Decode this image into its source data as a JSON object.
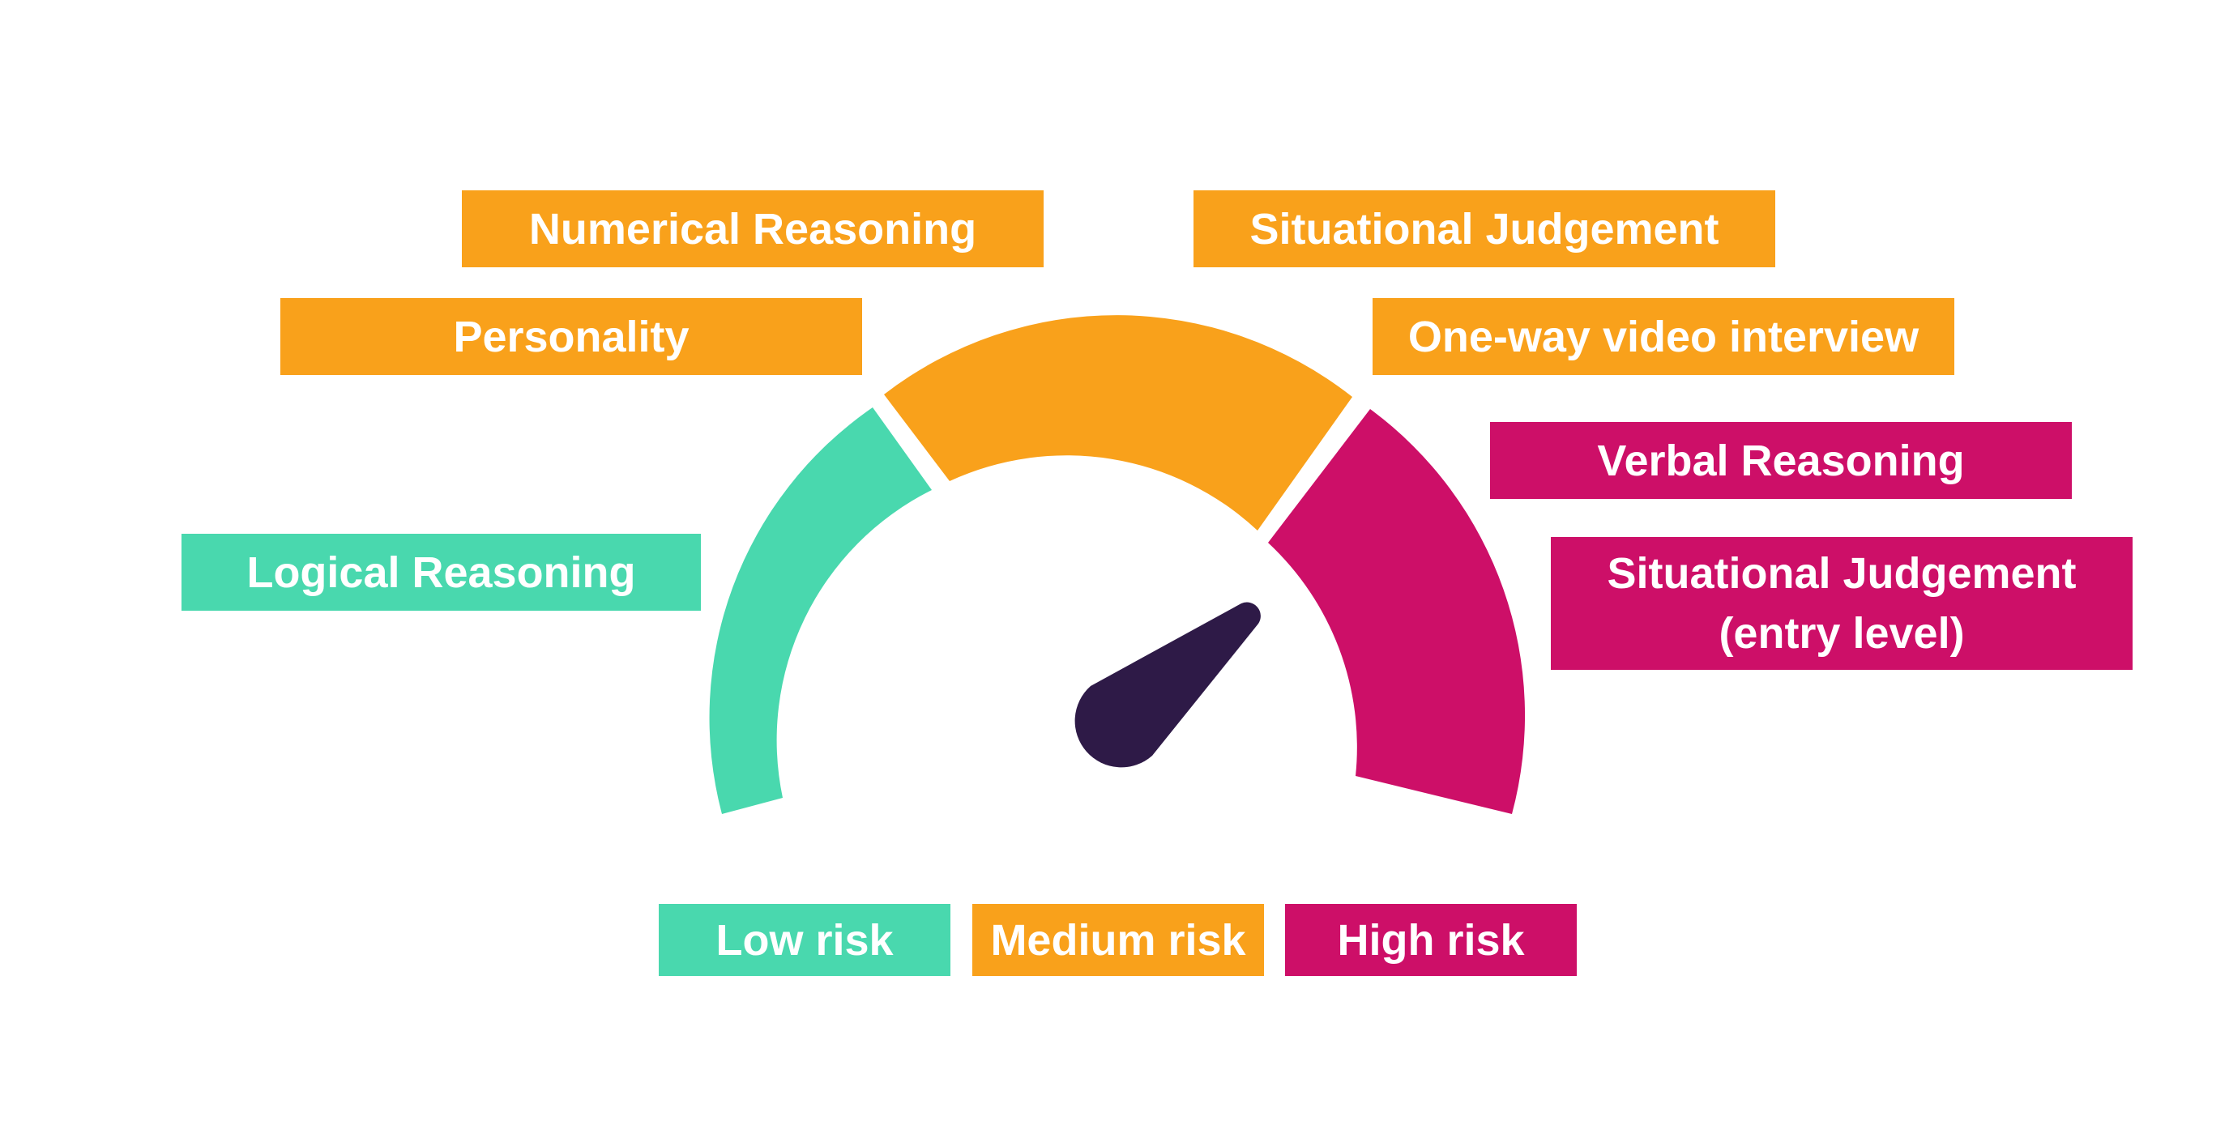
{
  "colors": {
    "low": "#49D8AE",
    "medium": "#F9A11B",
    "high": "#CD0F68",
    "needle": "#2E1A47",
    "background": "#FFFFFF"
  },
  "gauge": {
    "reading": "high",
    "needle_percent": 77
  },
  "labels": {
    "numerical_reasoning": "Numerical Reasoning",
    "personality": "Personality",
    "logical_reasoning": "Logical Reasoning",
    "situational_judgement": "Situational Judgement",
    "one_way_video_interview": "One-way video interview",
    "verbal_reasoning": "Verbal Reasoning",
    "situational_judgement_entry_line1": "Situational Judgement",
    "situational_judgement_entry_line2": "(entry level)"
  },
  "legend": {
    "low": "Low risk",
    "medium": "Medium risk",
    "high": "High risk"
  }
}
